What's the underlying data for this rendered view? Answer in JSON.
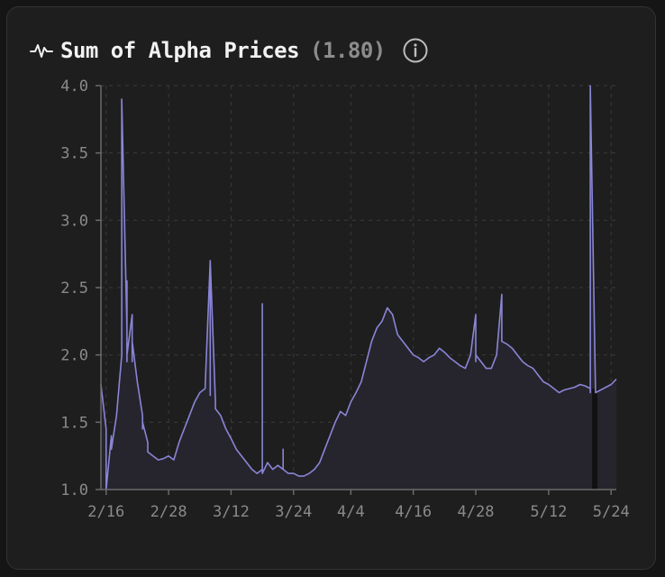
{
  "header": {
    "icon": "pulse-icon",
    "title": "Sum of Alpha Prices",
    "value": "(1.80)",
    "info_icon": "info-icon"
  },
  "colors": {
    "line": "#8a85d6",
    "area": "#26252e",
    "grid": "#3a3a3a",
    "axis": "#6a6a6a",
    "card": "#1e1e1e"
  },
  "chart_data": {
    "type": "area",
    "title": "Sum of Alpha Prices",
    "xlabel": "",
    "ylabel": "",
    "ylim": [
      1.0,
      4.0
    ],
    "xlim": [
      "2026-02-15",
      "2026-05-25"
    ],
    "x_ticks": [
      "2/16",
      "2/28",
      "3/12",
      "3/24",
      "4/4",
      "4/16",
      "4/28",
      "5/12",
      "5/24"
    ],
    "y_ticks": [
      "1.0",
      "1.5",
      "2.0",
      "2.5",
      "3.0",
      "3.5",
      "4.0"
    ],
    "grid": true,
    "series": [
      {
        "x": [
          "2026-02-15",
          "2026-02-16",
          "2026-02-16",
          "2026-02-17",
          "2026-02-17",
          "2026-02-18",
          "2026-02-19",
          "2026-02-19",
          "2026-02-20",
          "2026-02-20",
          "2026-02-20",
          "2026-02-20",
          "2026-02-21",
          "2026-02-21",
          "2026-02-21",
          "2026-02-22",
          "2026-02-23",
          "2026-02-23",
          "2026-02-23",
          "2026-02-24",
          "2026-02-24",
          "2026-02-25",
          "2026-02-26",
          "2026-02-27",
          "2026-02-28",
          "2026-03-01",
          "2026-03-02",
          "2026-03-03",
          "2026-03-04",
          "2026-03-05",
          "2026-03-06",
          "2026-03-07",
          "2026-03-08",
          "2026-03-08",
          "2026-03-08",
          "2026-03-09",
          "2026-03-09",
          "2026-03-10",
          "2026-03-11",
          "2026-03-12",
          "2026-03-13",
          "2026-03-14",
          "2026-03-15",
          "2026-03-16",
          "2026-03-17",
          "2026-03-18",
          "2026-03-18",
          "2026-03-18",
          "2026-03-19",
          "2026-03-20",
          "2026-03-21",
          "2026-03-22",
          "2026-03-22",
          "2026-03-22",
          "2026-03-23",
          "2026-03-24",
          "2026-03-25",
          "2026-03-26",
          "2026-03-27",
          "2026-03-28",
          "2026-03-29",
          "2026-03-30",
          "2026-03-31",
          "2026-04-01",
          "2026-04-02",
          "2026-04-03",
          "2026-04-04",
          "2026-04-05",
          "2026-04-06",
          "2026-04-07",
          "2026-04-08",
          "2026-04-09",
          "2026-04-10",
          "2026-04-11",
          "2026-04-12",
          "2026-04-13",
          "2026-04-14",
          "2026-04-15",
          "2026-04-16",
          "2026-04-17",
          "2026-04-18",
          "2026-04-19",
          "2026-04-20",
          "2026-04-21",
          "2026-04-22",
          "2026-04-23",
          "2026-04-24",
          "2026-04-25",
          "2026-04-26",
          "2026-04-27",
          "2026-04-28",
          "2026-04-28",
          "2026-04-28",
          "2026-04-29",
          "2026-04-30",
          "2026-05-01",
          "2026-05-02",
          "2026-05-03",
          "2026-05-03",
          "2026-05-03",
          "2026-05-04",
          "2026-05-05",
          "2026-05-06",
          "2026-05-07",
          "2026-05-08",
          "2026-05-09",
          "2026-05-10",
          "2026-05-11",
          "2026-05-12",
          "2026-05-13",
          "2026-05-14",
          "2026-05-15",
          "2026-05-16",
          "2026-05-17",
          "2026-05-18",
          "2026-05-19",
          "2026-05-20",
          "2026-05-20",
          "2026-05-20",
          "2026-05-21",
          "2026-05-22",
          "2026-05-23",
          "2026-05-24",
          "2026-05-25"
        ],
        "y": [
          1.78,
          1.45,
          1.0,
          1.4,
          1.3,
          1.55,
          2.0,
          3.9,
          2.2,
          1.95,
          2.55,
          2.0,
          2.3,
          1.95,
          2.1,
          1.8,
          1.55,
          1.45,
          1.5,
          1.35,
          1.28,
          1.25,
          1.22,
          1.23,
          1.25,
          1.22,
          1.35,
          1.45,
          1.55,
          1.65,
          1.72,
          1.75,
          2.7,
          1.7,
          2.7,
          1.65,
          1.6,
          1.55,
          1.45,
          1.38,
          1.3,
          1.25,
          1.2,
          1.15,
          1.12,
          1.15,
          2.38,
          1.12,
          1.2,
          1.15,
          1.18,
          1.15,
          1.3,
          1.15,
          1.12,
          1.12,
          1.1,
          1.1,
          1.12,
          1.15,
          1.2,
          1.3,
          1.4,
          1.5,
          1.58,
          1.55,
          1.65,
          1.72,
          1.8,
          1.95,
          2.1,
          2.2,
          2.25,
          2.35,
          2.3,
          2.15,
          2.1,
          2.05,
          2.0,
          1.98,
          1.95,
          1.98,
          2.0,
          2.05,
          2.02,
          1.98,
          1.95,
          1.92,
          1.9,
          2.0,
          2.3,
          1.95,
          2.0,
          1.95,
          1.9,
          1.9,
          2.0,
          2.45,
          2.15,
          2.1,
          2.08,
          2.05,
          2.0,
          1.95,
          1.92,
          1.9,
          1.85,
          1.8,
          1.78,
          1.75,
          1.72,
          1.74,
          1.75,
          1.76,
          1.78,
          1.77,
          1.75,
          1.72,
          4.0,
          1.72,
          1.74,
          1.76,
          1.78,
          1.82
        ],
        "gap": [
          "2026-05-20",
          "2026-05-21"
        ]
      }
    ]
  }
}
